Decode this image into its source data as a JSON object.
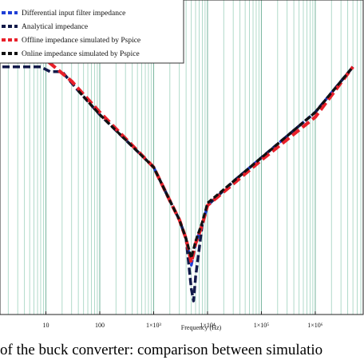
{
  "chart_data": {
    "type": "line",
    "x_scale": "log",
    "xlabel": "Frequency (Hz)",
    "ylabel": "",
    "xlim": [
      1,
      7000000
    ],
    "ylim": [
      -35,
      95
    ],
    "grid": "vertical minor lines",
    "legend_position": "top-left",
    "x_ticks": [
      {
        "value": 10,
        "label": "10"
      },
      {
        "value": 100,
        "label": "100"
      },
      {
        "value": 1000,
        "label": "1×10³"
      },
      {
        "value": 10000,
        "label": "1×10⁴"
      },
      {
        "value": 100000,
        "label": "1×10⁵"
      },
      {
        "value": 1000000,
        "label": "1×10⁶"
      }
    ],
    "series": [
      {
        "name": "Differential input filter impedance",
        "color": "#1f3fd6",
        "points": [
          [
            1000,
            26
          ],
          [
            2000,
            12
          ],
          [
            3000,
            4
          ],
          [
            4000,
            -4
          ],
          [
            5000,
            -15
          ],
          [
            6000,
            -6
          ],
          [
            8000,
            2
          ],
          [
            10000,
            10
          ],
          [
            30000,
            20
          ],
          [
            100000,
            30
          ],
          [
            1000000,
            49
          ],
          [
            5000000,
            68
          ]
        ]
      },
      {
        "name": "Analytical impedance",
        "color": "#121a4a",
        "points": [
          [
            1,
            68
          ],
          [
            3,
            68
          ],
          [
            8,
            68
          ],
          [
            12,
            66
          ],
          [
            20,
            66
          ],
          [
            40,
            58
          ],
          [
            100,
            48
          ],
          [
            1000,
            26
          ],
          [
            2000,
            12
          ],
          [
            3000,
            4
          ],
          [
            4000,
            -4
          ],
          [
            5000,
            -25
          ],
          [
            5500,
            -30
          ],
          [
            6000,
            -20
          ],
          [
            8000,
            2
          ],
          [
            10000,
            10
          ],
          [
            30000,
            20
          ],
          [
            100000,
            30
          ],
          [
            1000000,
            49
          ],
          [
            5000000,
            68
          ]
        ]
      },
      {
        "name": "Offline impedance simulated by Pspice",
        "color": "#e8202a",
        "points": [
          [
            1,
            82
          ],
          [
            3,
            76
          ],
          [
            10,
            71
          ],
          [
            30,
            62
          ],
          [
            100,
            49
          ],
          [
            1000,
            26
          ],
          [
            2000,
            12
          ],
          [
            3000,
            4
          ],
          [
            4000,
            -4
          ],
          [
            5000,
            -14
          ],
          [
            6000,
            -6
          ],
          [
            8000,
            2
          ],
          [
            10000,
            10
          ],
          [
            30000,
            19
          ],
          [
            100000,
            29
          ],
          [
            1000000,
            47
          ],
          [
            5000000,
            68
          ]
        ]
      },
      {
        "name": "Online impedance simulated by Pspice",
        "color": "#111111",
        "points": [
          [
            40,
            58
          ],
          [
            100,
            48
          ],
          [
            1000,
            26
          ],
          [
            2000,
            12
          ],
          [
            3000,
            4
          ],
          [
            4000,
            -4
          ],
          [
            5000,
            -12
          ],
          [
            6000,
            -5
          ],
          [
            8000,
            3
          ],
          [
            10000,
            11
          ],
          [
            30000,
            20
          ],
          [
            100000,
            30
          ],
          [
            1000000,
            49
          ],
          [
            5000000,
            68
          ]
        ]
      }
    ]
  },
  "caption": "of the buck converter: comparison between simulatio"
}
